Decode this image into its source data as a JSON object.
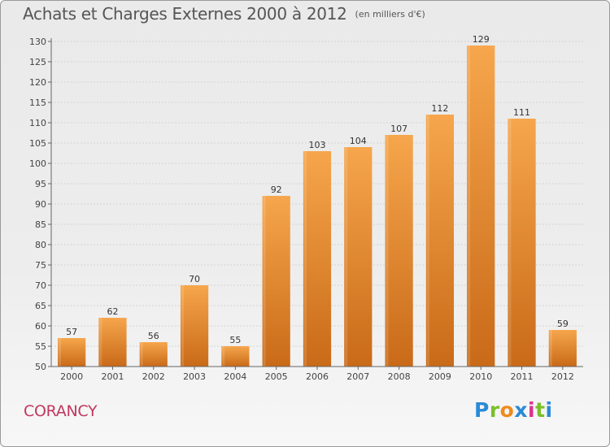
{
  "header": {
    "title": "Achats et Charges Externes 2000 à 2012",
    "subtitle": "(en milliers d'€)"
  },
  "footer": {
    "commune": "CORANCY",
    "logo": "Proxiti"
  },
  "colors": {
    "bar_light": "#f6a64c",
    "bar_dark": "#c96a18",
    "title": "#555555",
    "commune": "#c0385e"
  },
  "chart_data": {
    "type": "bar",
    "categories": [
      "2000",
      "2001",
      "2002",
      "2003",
      "2004",
      "2005",
      "2006",
      "2007",
      "2008",
      "2009",
      "2010",
      "2011",
      "2012"
    ],
    "values": [
      57,
      62,
      56,
      70,
      55,
      92,
      103,
      104,
      107,
      112,
      129,
      111,
      59
    ],
    "title": "Achats et Charges Externes 2000 à 2012",
    "subtitle": "(en milliers d'€)",
    "xlabel": "",
    "ylabel": "",
    "ylim": [
      50,
      130
    ],
    "yticks": [
      50,
      55,
      60,
      65,
      70,
      75,
      80,
      85,
      90,
      95,
      100,
      105,
      110,
      115,
      120,
      125,
      130
    ],
    "grid": true,
    "data_labels": true
  }
}
